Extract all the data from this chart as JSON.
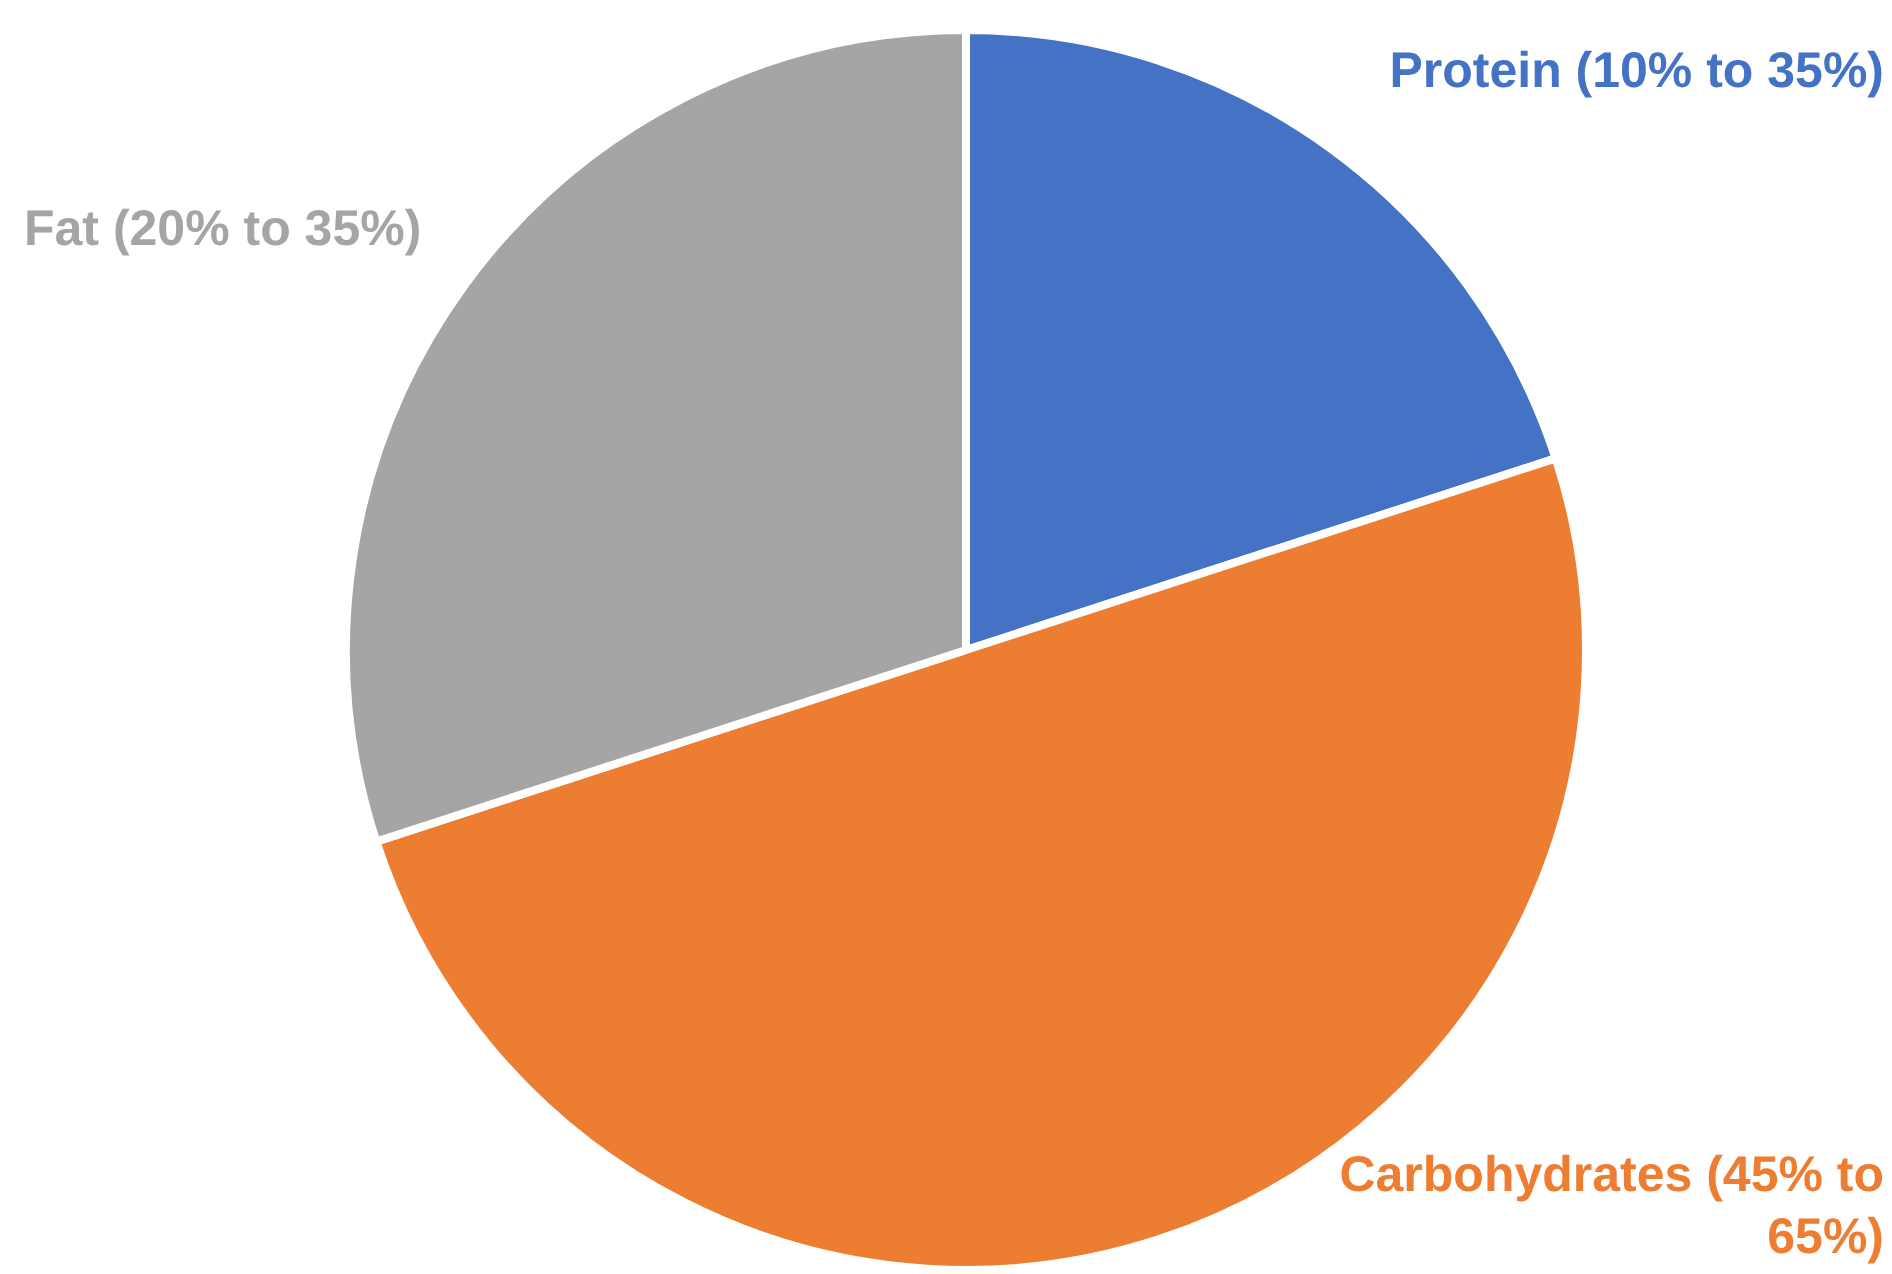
{
  "chart_data": {
    "type": "pie",
    "categories": [
      "Protein (10% to 35%)",
      "Carbohydrates (45% to 65%)",
      "Fat (20% to 35%)"
    ],
    "values": [
      20,
      50,
      30
    ],
    "colors": [
      "#4472c4",
      "#ed7d31",
      "#a5a5a5"
    ],
    "legend": false
  }
}
